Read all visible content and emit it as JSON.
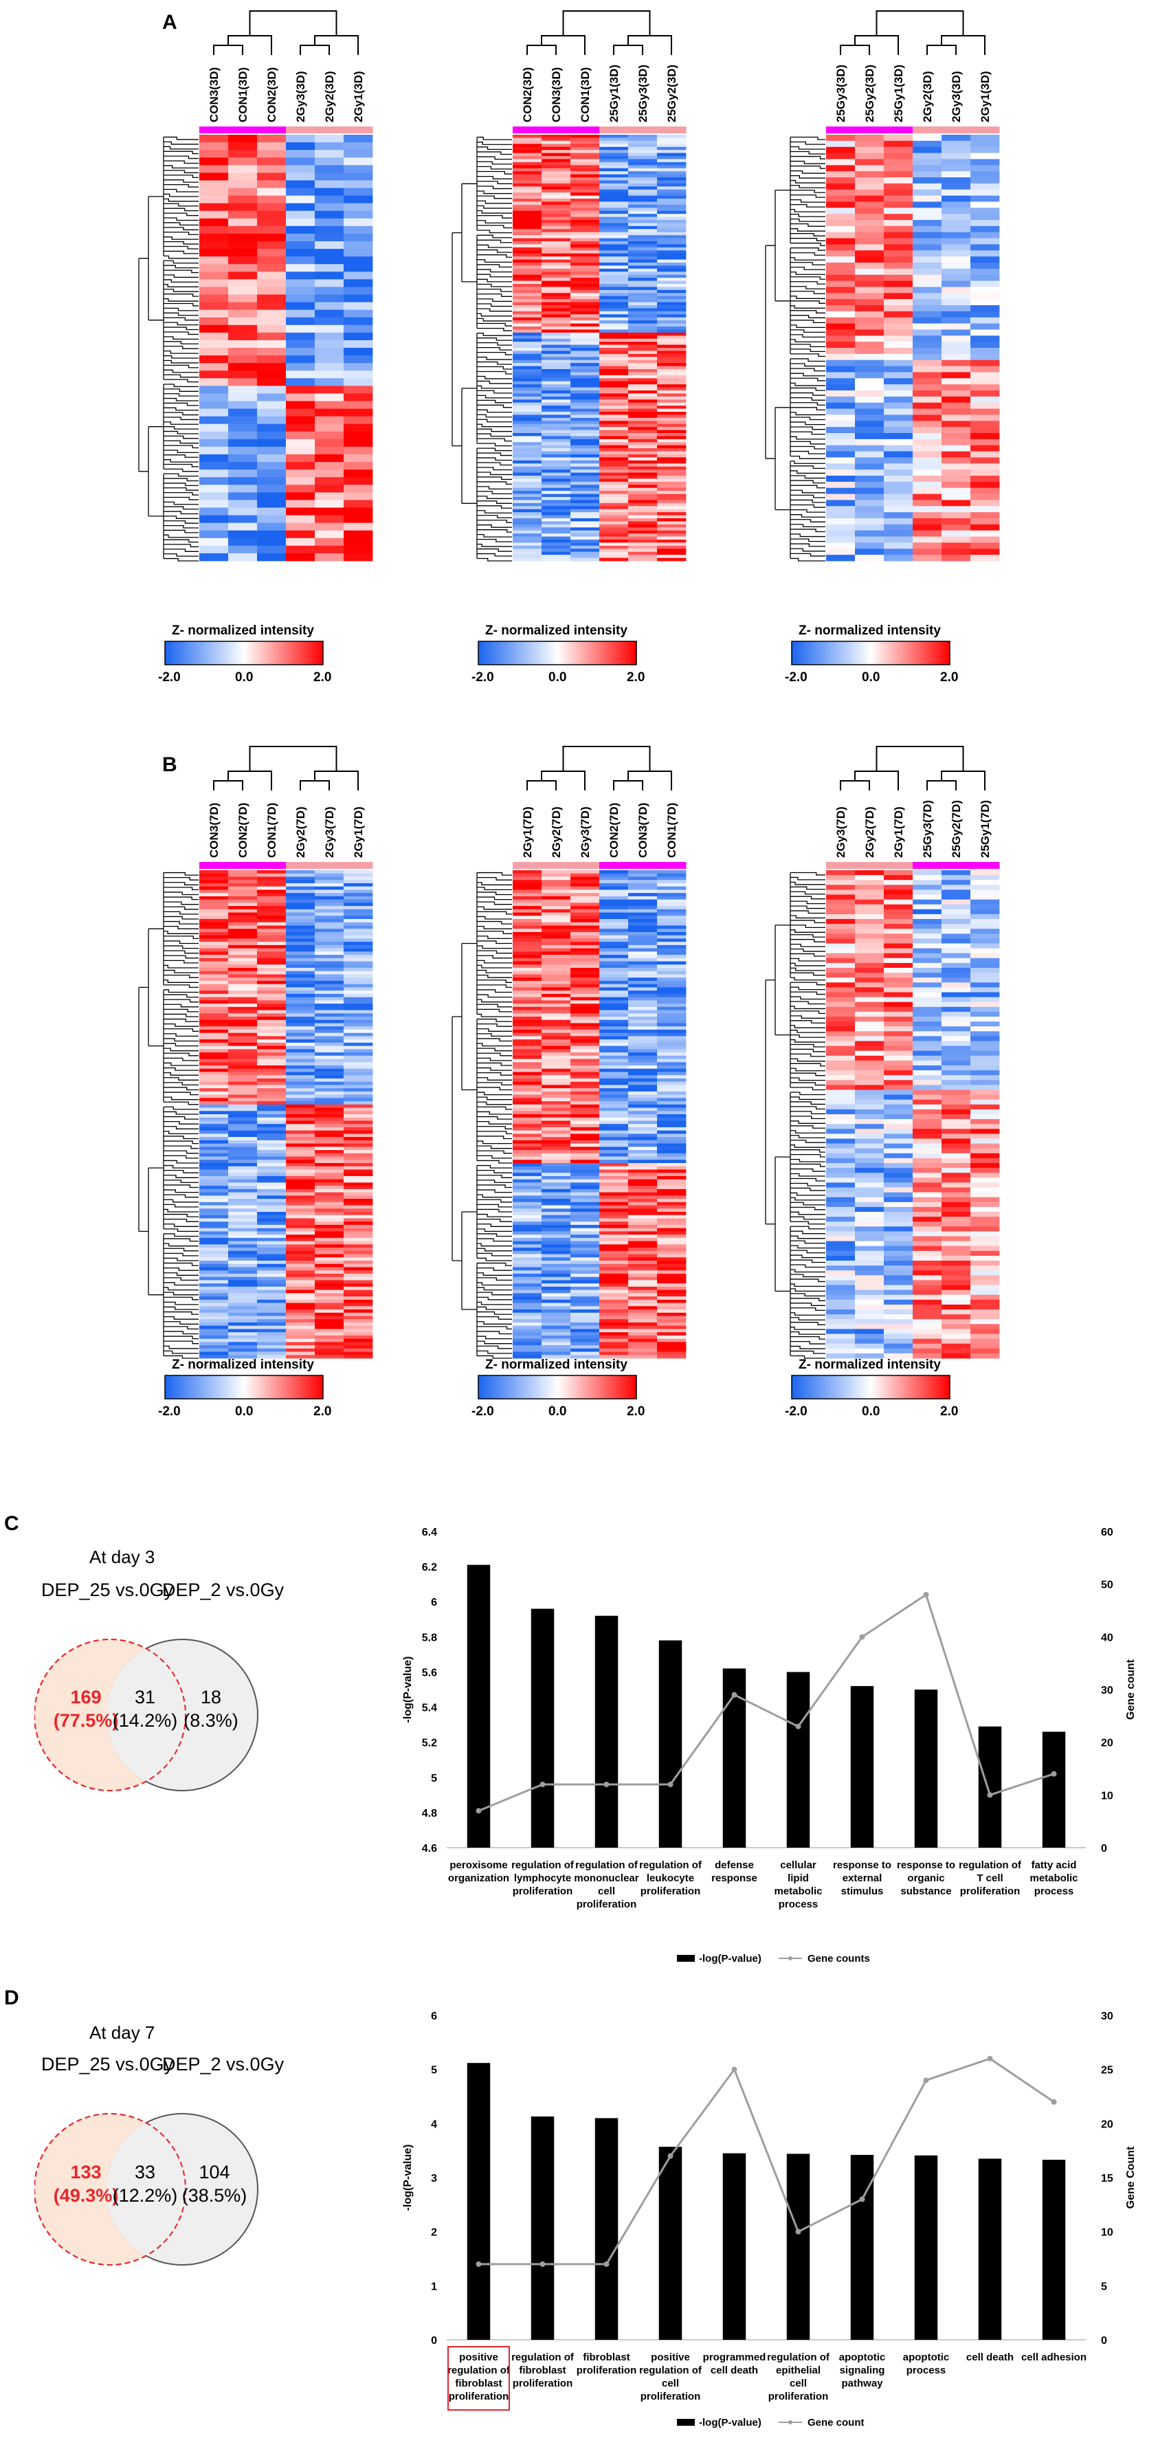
{
  "panel_labels": {
    "a": "A",
    "b": "B",
    "c": "C",
    "d": "D"
  },
  "heatmaps": [
    {
      "samples": [
        "CON3(3D)",
        "CON1(3D)",
        "CON2(3D)",
        "2Gy3(3D)",
        "2Gy2(3D)",
        "2Gy1(3D)"
      ],
      "control_side": "left",
      "colorbar": {
        "title": "Z- normalized intensity",
        "min": "-2.0",
        "mid": "0.0",
        "max": "2.0"
      }
    },
    {
      "samples": [
        "CON2(3D)",
        "CON3(3D)",
        "CON1(3D)",
        "25Gy1(3D)",
        "25Gy3(3D)",
        "25Gy2(3D)"
      ],
      "control_side": "left",
      "colorbar": {
        "title": "Z- normalized intensity",
        "min": "-2.0",
        "mid": "0.0",
        "max": "2.0"
      }
    },
    {
      "samples": [
        "25Gy3(3D)",
        "25Gy2(3D)",
        "25Gy1(3D)",
        "2Gy2(3D)",
        "2Gy3(3D)",
        "2Gy1(3D)"
      ],
      "control_side": "left",
      "colorbar": {
        "title": "Z- normalized intensity",
        "min": "-2.0",
        "mid": "0.0",
        "max": "2.0"
      }
    },
    {
      "samples": [
        "CON3(7D)",
        "CON2(7D)",
        "CON1(7D)",
        "2Gy2(7D)",
        "2Gy3(7D)",
        "2Gy1(7D)"
      ],
      "control_side": "left",
      "colorbar": {
        "title": "Z- normalized intensity",
        "min": "-2.0",
        "mid": "0.0",
        "max": "2.0"
      }
    },
    {
      "samples": [
        "2Gy1(7D)",
        "2Gy2(7D)",
        "2Gy3(7D)",
        "CON2(7D)",
        "CON3(7D)",
        "CON1(7D)"
      ],
      "control_side": "right",
      "colorbar": {
        "title": "Z- normalized intensity",
        "min": "-2.0",
        "mid": "0.0",
        "max": "2.0"
      }
    },
    {
      "samples": [
        "2Gy3(7D)",
        "2Gy2(7D)",
        "2Gy1(7D)",
        "25Gy3(7D)",
        "25Gy2(7D)",
        "25Gy1(7D)"
      ],
      "control_side": "right",
      "colorbar": {
        "title": "Z- normalized intensity",
        "min": "-2.0",
        "mid": "0.0",
        "max": "2.0"
      }
    }
  ],
  "venn_c": {
    "title": "At day 3",
    "left_label": "DEP_25 vs.0Gy",
    "right_label": "DEP_2 vs.0Gy",
    "left_only": "169",
    "left_only_pct": "(77.5%)",
    "both": "31",
    "both_pct": "(14.2%)",
    "right_only": "18",
    "right_only_pct": "(8.3%)"
  },
  "venn_d": {
    "title": "At day 7",
    "left_label": "DEP_25 vs.0Gy",
    "right_label": "DEP_2 vs.0Gy",
    "left_only": "133",
    "left_only_pct": "(49.3%)",
    "both": "33",
    "both_pct": "(12.2%)",
    "right_only": "104",
    "right_only_pct": "(38.5%)"
  },
  "chart_data": [
    {
      "type": "bar",
      "panel": "C",
      "categories": [
        "peroxisome organization",
        "regulation of lymphocyte proliferation",
        "regulation of mononuclear cell proliferation",
        "regulation of leukocyte proliferation",
        "defense response",
        "cellular lipid metabolic process",
        "response to external stimulus",
        "response to organic substance",
        "regulation of T cell proliferation",
        "fatty acid metabolic process"
      ],
      "series": [
        {
          "name": "-log(P-value)",
          "axis": "left",
          "values": [
            6.21,
            5.96,
            5.92,
            5.78,
            5.62,
            5.6,
            5.52,
            5.5,
            5.29,
            5.26
          ]
        },
        {
          "name": "Gene counts",
          "axis": "right",
          "type": "line",
          "values": [
            7,
            12,
            12,
            12,
            29,
            23,
            40,
            48,
            10,
            14
          ]
        }
      ],
      "ylabel": "-log(P-value)",
      "y2label": "Gene count",
      "ylim": [
        4.6,
        6.4
      ],
      "yticks": [
        "4.6",
        "4.8",
        "5",
        "5.2",
        "5.4",
        "5.6",
        "5.8",
        "6",
        "6.2",
        "6.4"
      ],
      "y2lim": [
        0,
        60
      ],
      "y2ticks": [
        "0",
        "10",
        "20",
        "30",
        "40",
        "50",
        "60"
      ],
      "legend": [
        "-log(P-value)",
        "Gene counts"
      ],
      "highlight_index": null
    },
    {
      "type": "bar",
      "panel": "D",
      "categories": [
        "positive regulation of fibroblast proliferation",
        "regulation of fibroblast proliferation",
        "fibroblast proliferation",
        "positive regulation of cell proliferation",
        "programmed cell death",
        "regulation of epithelial cell proliferation",
        "apoptotic signaling pathway",
        "apoptotic process",
        "cell death",
        "cell adhesion"
      ],
      "series": [
        {
          "name": "-log(P-value)",
          "axis": "left",
          "values": [
            5.12,
            4.13,
            4.1,
            3.57,
            3.45,
            3.44,
            3.42,
            3.41,
            3.35,
            3.33
          ]
        },
        {
          "name": "Gene count",
          "axis": "right",
          "type": "line",
          "values": [
            7,
            7,
            7,
            17,
            25,
            10,
            13,
            24,
            26,
            22
          ]
        }
      ],
      "ylabel": "-log(P-value)",
      "y2label": "Gene Count",
      "ylim": [
        0,
        6
      ],
      "yticks": [
        "0",
        "1",
        "2",
        "3",
        "4",
        "5",
        "6"
      ],
      "y2lim": [
        0,
        30
      ],
      "y2ticks": [
        "0",
        "5",
        "10",
        "15",
        "20",
        "25",
        "30"
      ],
      "legend": [
        "-log(P-value)",
        "Gene count"
      ],
      "highlight_index": 0
    }
  ],
  "colors": {
    "pos": "#ff0000",
    "neg": "#1a64f0",
    "neutral": "#ffffff",
    "control_bar": "#ff00ff",
    "treat_bar": "#f5a0a6",
    "bar": "#000000",
    "line": "#9e9e9e",
    "highlight": "#e8262a",
    "venn_left_fill": "#fbe3d3",
    "venn_right_fill": "#efefef",
    "venn_left_stroke": "#e8262a",
    "venn_right_stroke": "#555555"
  }
}
